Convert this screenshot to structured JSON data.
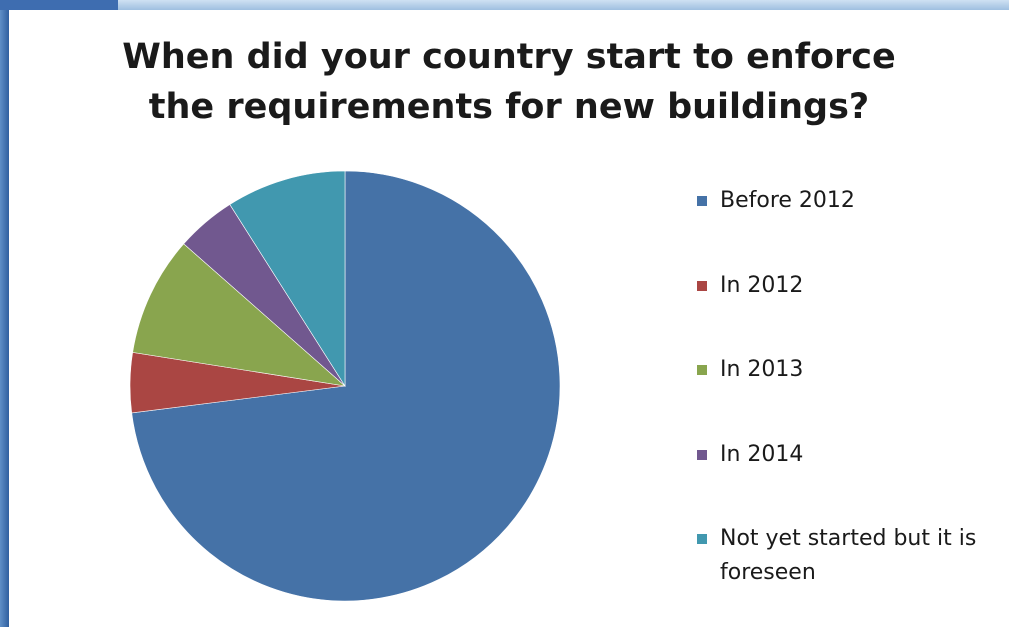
{
  "chart_data": {
    "type": "pie",
    "title": "When did your country start to enforce the requirements for new buildings?",
    "title_lines": [
      "When did your country start to enforce",
      "the requirements for new buildings?"
    ],
    "categories": [
      "Before 2012",
      "In 2012",
      "In 2013",
      "In 2014",
      "Not yet started but it is foreseen"
    ],
    "values": [
      73,
      4.5,
      9,
      4.5,
      9
    ],
    "colors": [
      "#4572A7",
      "#AA4643",
      "#89A54E",
      "#71588F",
      "#4198AF"
    ],
    "legend_position": "right",
    "start_angle_deg": 0,
    "direction": "clockwise"
  }
}
